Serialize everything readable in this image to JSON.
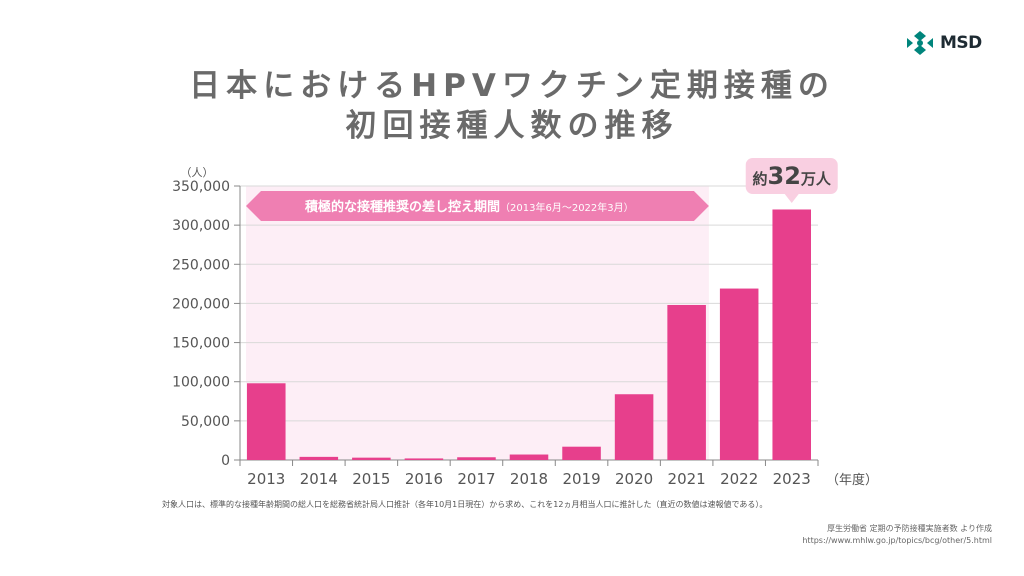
{
  "brand": {
    "name": "MSD",
    "color": "#00857c"
  },
  "title": {
    "line1": "日本におけるHPVワクチン定期接種の",
    "line2": "初回接種人数の推移"
  },
  "chart_data": {
    "type": "bar",
    "categories": [
      "2013",
      "2014",
      "2015",
      "2016",
      "2017",
      "2018",
      "2019",
      "2020",
      "2021",
      "2022",
      "2023"
    ],
    "values": [
      98000,
      4000,
      3000,
      2000,
      3500,
      7000,
      17000,
      84000,
      198000,
      219000,
      320000
    ],
    "ylim": [
      0,
      350000
    ],
    "yticks": [
      "0",
      "50,000",
      "100,000",
      "150,000",
      "200,000",
      "250,000",
      "300,000",
      "350,000"
    ],
    "ylabel": "（人）",
    "xlabel": "（年度）",
    "grid": true,
    "bar_color": "#e73f8c",
    "highlight_period": {
      "label": "積極的な接種推奨の差し控え期間",
      "sublabel": "（2013年6月～2022年3月）",
      "start_category": "2013",
      "end_category": "2021",
      "shade_color": "#fdeef6",
      "banner_color": "#ef7fb2"
    },
    "callout": {
      "prefix": "約",
      "number": "32",
      "suffix": "万人",
      "category": "2023",
      "color": "#f9cfe1"
    }
  },
  "footnote": "対象人口は、標準的な接種年齢期間の総人口を総務省統計局人口推計（各年10月1日現在）から求め、これを12ヵ月相当人口に推計した（直近の数値は速報値である）。",
  "source": {
    "line1": "厚生労働省 定期の予防接種実施者数 より作成",
    "line2": "https://www.mhlw.go.jp/topics/bcg/other/5.html"
  }
}
